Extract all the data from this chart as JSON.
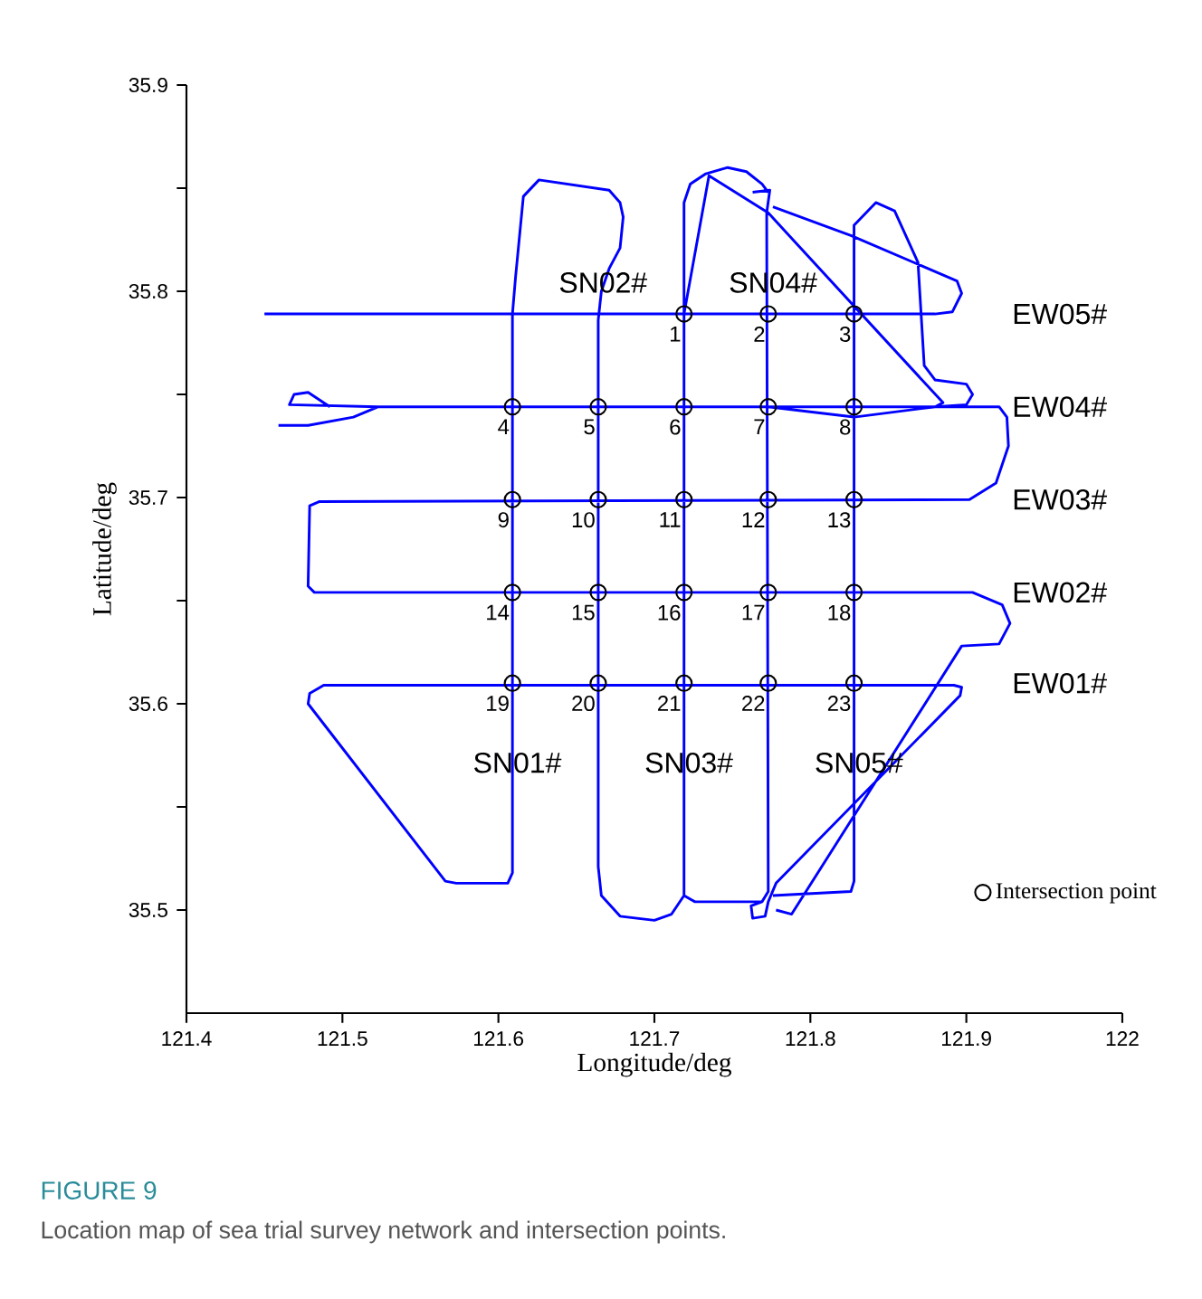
{
  "chart_data": {
    "type": "line",
    "title": "FIGURE 9",
    "subtitle": "Location map of sea trial survey network and intersection points.",
    "xlabel": "Longitude/deg",
    "ylabel": "Latitude/deg",
    "xlim": [
      121.4,
      122
    ],
    "ylim": [
      35.45,
      35.9
    ],
    "xticks": [
      121.4,
      121.5,
      121.6,
      121.7,
      121.8,
      121.9,
      122
    ],
    "yticks": [
      35.5,
      {
        "value": 35.55,
        "label": null
      },
      35.6,
      {
        "value": 35.65,
        "label": null
      },
      35.7,
      {
        "value": 35.75,
        "label": null
      },
      35.8,
      {
        "value": 35.85,
        "label": null
      },
      35.9
    ],
    "legend": "bottom right",
    "series": [
      {
        "color": "#0000ff",
        "marker": "none",
        "x": [
          121.45,
          121.88,
          121.891,
          121.897,
          121.894,
          121.826,
          121.776,
          null,
          121.776,
          121.826,
          121.828,
          121.828,
          121.842,
          121.854,
          121.869,
          121.873,
          121.88,
          121.9,
          121.904,
          121.9,
          121.88,
          121.828,
          121.773,
          null,
          121.719,
          121.735,
          121.773,
          121.885,
          121.88,
          null,
          121.459,
          121.478,
          121.507,
          121.523,
          121.921,
          121.926,
          121.927,
          121.919,
          121.902,
          121.485,
          121.479,
          121.478,
          121.482,
          121.904,
          121.923,
          121.928,
          121.921,
          121.897,
          121.788,
          121.778,
          null,
          121.492,
          121.478,
          121.469,
          121.466,
          121.523,
          null,
          121.763,
          121.774,
          121.772,
          121.773,
          121.769,
          121.762,
          121.763,
          121.771,
          121.773,
          121.778,
          121.896,
          121.897,
          121.892,
          121.488,
          121.479,
          121.478,
          121.566,
          121.573,
          121.606,
          121.609,
          121.609,
          121.611,
          121.616,
          121.626,
          121.671,
          121.678,
          121.68,
          121.678,
          121.671,
          121.666,
          121.664,
          121.664,
          121.666,
          121.678,
          121.7,
          121.711,
          121.719,
          121.719,
          121.723,
          121.733,
          121.747,
          121.759,
          121.769,
          121.773,
          null,
          121.719,
          121.726,
          121.769
        ],
        "values": [
          35.789,
          35.789,
          35.79,
          35.799,
          35.805,
          35.827,
          35.841,
          null,
          35.507,
          35.509,
          35.514,
          35.832,
          35.843,
          35.839,
          35.814,
          35.764,
          35.757,
          35.755,
          35.75,
          35.745,
          35.744,
          35.739,
          35.744,
          null,
          35.789,
          35.856,
          35.838,
          35.746,
          35.744,
          null,
          35.735,
          35.735,
          35.739,
          35.744,
          35.744,
          35.739,
          35.725,
          35.707,
          35.699,
          35.698,
          35.696,
          35.657,
          35.654,
          35.654,
          35.648,
          35.639,
          35.629,
          35.628,
          35.498,
          35.5,
          null,
          35.744,
          35.751,
          35.75,
          35.745,
          35.744,
          null,
          35.848,
          35.849,
          35.838,
          35.509,
          35.504,
          35.502,
          35.496,
          35.497,
          35.504,
          35.513,
          35.604,
          35.608,
          35.609,
          35.609,
          35.605,
          35.6,
          35.514,
          35.513,
          35.513,
          35.518,
          35.789,
          35.807,
          35.846,
          35.854,
          35.849,
          35.843,
          35.836,
          35.821,
          35.811,
          35.8,
          35.786,
          35.521,
          35.507,
          35.497,
          35.495,
          35.498,
          35.507,
          35.843,
          35.852,
          35.857,
          35.86,
          35.858,
          35.852,
          35.848,
          null,
          35.507,
          35.504,
          35.504
        ]
      },
      {
        "type": "scatter",
        "name": "Intersection point",
        "color": "#000000",
        "marker": "circle",
        "x": [
          121.719,
          121.773,
          121.828,
          121.609,
          121.664,
          121.719,
          121.773,
          121.828,
          121.609,
          121.664,
          121.719,
          121.773,
          121.828,
          121.609,
          121.664,
          121.719,
          121.773,
          121.828,
          121.609,
          121.664,
          121.719,
          121.773,
          121.828
        ],
        "values": [
          35.789,
          35.789,
          35.789,
          35.744,
          35.744,
          35.744,
          35.744,
          35.744,
          35.699,
          35.699,
          35.699,
          35.699,
          35.699,
          35.654,
          35.654,
          35.654,
          35.654,
          35.654,
          35.61,
          35.61,
          35.61,
          35.61,
          35.61
        ]
      }
    ],
    "annotations": [
      {
        "text": "1",
        "x": 121.719,
        "y": 35.789
      },
      {
        "text": "2",
        "x": 121.773,
        "y": 35.789
      },
      {
        "text": "3",
        "x": 121.828,
        "y": 35.789
      },
      {
        "text": "4",
        "x": 121.609,
        "y": 35.744
      },
      {
        "text": "5",
        "x": 121.664,
        "y": 35.744
      },
      {
        "text": "6",
        "x": 121.719,
        "y": 35.744
      },
      {
        "text": "7",
        "x": 121.773,
        "y": 35.744
      },
      {
        "text": "8",
        "x": 121.828,
        "y": 35.744
      },
      {
        "text": "9",
        "x": 121.609,
        "y": 35.699
      },
      {
        "text": "10",
        "x": 121.664,
        "y": 35.699
      },
      {
        "text": "11",
        "x": 121.719,
        "y": 35.699
      },
      {
        "text": "12",
        "x": 121.773,
        "y": 35.699
      },
      {
        "text": "13",
        "x": 121.828,
        "y": 35.699
      },
      {
        "text": "14",
        "x": 121.609,
        "y": 35.654
      },
      {
        "text": "15",
        "x": 121.664,
        "y": 35.654
      },
      {
        "text": "16",
        "x": 121.719,
        "y": 35.654
      },
      {
        "text": "17",
        "x": 121.773,
        "y": 35.654
      },
      {
        "text": "18",
        "x": 121.828,
        "y": 35.654
      },
      {
        "text": "19",
        "x": 121.609,
        "y": 35.61
      },
      {
        "text": "20",
        "x": 121.664,
        "y": 35.61
      },
      {
        "text": "21",
        "x": 121.719,
        "y": 35.61
      },
      {
        "text": "22",
        "x": 121.773,
        "y": 35.61
      },
      {
        "text": "23",
        "x": 121.828,
        "y": 35.61
      },
      "EW05#",
      "EW04#",
      "EW03#",
      "EW02#",
      "EW01#",
      "SN01#",
      "SN02#",
      "SN03#",
      "SN04#",
      "SN05#"
    ]
  }
}
